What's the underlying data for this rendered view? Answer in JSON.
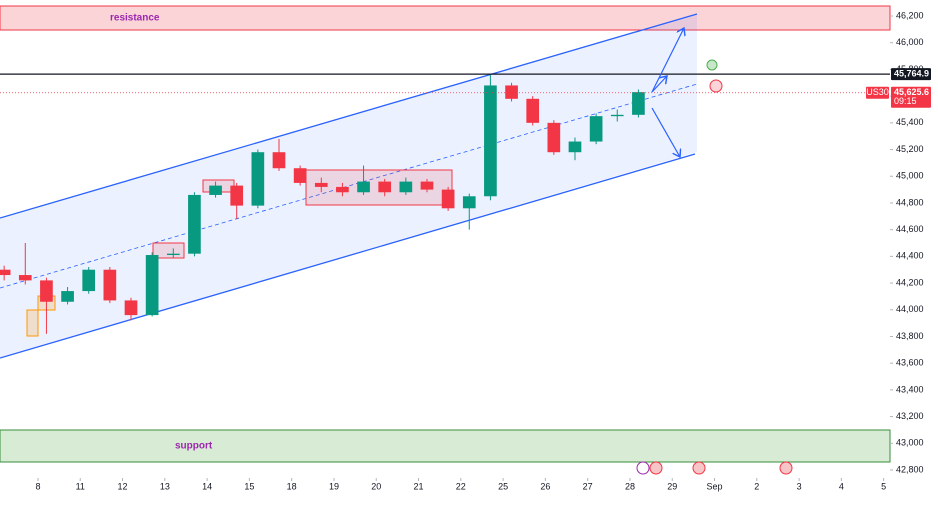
{
  "chart_data": {
    "type": "candlestick",
    "x": [
      -0.8,
      -0.3,
      0.2,
      0.7,
      1.2,
      1.7,
      2.2,
      2.7,
      3.2,
      3.7,
      4.2,
      4.7,
      5.2,
      5.7,
      6.2,
      6.7,
      7.2,
      7.7,
      8.2,
      8.7,
      9.2,
      9.7,
      10.2,
      10.7,
      11.2,
      11.7,
      12.2,
      12.7,
      13.2,
      13.7,
      14.2
    ],
    "open": [
      44300,
      44260,
      44220,
      44060,
      44140,
      44300,
      44070,
      43960,
      44410,
      44420,
      44860,
      44930,
      44780,
      45180,
      45060,
      44950,
      44920,
      44880,
      44960,
      44880,
      44960,
      44900,
      44760,
      44850,
      45680,
      45580,
      45400,
      45180,
      45260,
      45450,
      45460
    ],
    "high": [
      44330,
      44500,
      44240,
      44170,
      44320,
      44320,
      44090,
      44430,
      44460,
      44880,
      44960,
      44950,
      45200,
      45280,
      45080,
      44990,
      44950,
      45080,
      44980,
      44990,
      44980,
      44920,
      44870,
      45760,
      45700,
      45600,
      45420,
      45290,
      45470,
      45500,
      45650
    ],
    "low": [
      44220,
      44190,
      43820,
      44040,
      44120,
      44050,
      43920,
      43950,
      44390,
      44400,
      44840,
      44680,
      44760,
      45040,
      44930,
      44880,
      44850,
      44860,
      44850,
      44860,
      44880,
      44740,
      44600,
      44820,
      45560,
      45380,
      45160,
      45120,
      45240,
      45410,
      45440
    ],
    "close": [
      44260,
      44220,
      44060,
      44140,
      44300,
      44070,
      43960,
      44410,
      44420,
      44860,
      44930,
      44780,
      45180,
      45060,
      44950,
      44920,
      44880,
      44960,
      44880,
      44960,
      44900,
      44760,
      44850,
      45680,
      45580,
      45400,
      45180,
      45260,
      45450,
      45460,
      45630
    ],
    "up_color": "#089981",
    "down_color": "#f23645",
    "xlim": [
      -0.898,
      20.15
    ],
    "xticks": [
      {
        "value": 0,
        "label": "8"
      },
      {
        "value": 1,
        "label": "11"
      },
      {
        "value": 2,
        "label": "12"
      },
      {
        "value": 3,
        "label": "13"
      },
      {
        "value": 4,
        "label": "14"
      },
      {
        "value": 5,
        "label": "15"
      },
      {
        "value": 6,
        "label": "18"
      },
      {
        "value": 7,
        "label": "19"
      },
      {
        "value": 8,
        "label": "20"
      },
      {
        "value": 9,
        "label": "21"
      },
      {
        "value": 10,
        "label": "22"
      },
      {
        "value": 11,
        "label": "25"
      },
      {
        "value": 12,
        "label": "26"
      },
      {
        "value": 13,
        "label": "27"
      },
      {
        "value": 14,
        "label": "28"
      },
      {
        "value": 15,
        "label": "29"
      },
      {
        "value": 16,
        "label": "Sep"
      },
      {
        "value": 17,
        "label": "2"
      },
      {
        "value": 18,
        "label": "3"
      },
      {
        "value": 19,
        "label": "4"
      },
      {
        "value": 20,
        "label": "5"
      }
    ],
    "ylim": [
      42740,
      46320
    ],
    "yticks": [
      {
        "value": 42800,
        "label": "42,800"
      },
      {
        "value": 43000,
        "label": "43,000"
      },
      {
        "value": 43200,
        "label": "43,200"
      },
      {
        "value": 43400,
        "label": "43,400"
      },
      {
        "value": 43600,
        "label": "43,600"
      },
      {
        "value": 43800,
        "label": "43,800"
      },
      {
        "value": 44000,
        "label": "44,000"
      },
      {
        "value": 44200,
        "label": "44,200"
      },
      {
        "value": 44400,
        "label": "44,400"
      },
      {
        "value": 44600,
        "label": "44,600"
      },
      {
        "value": 44800,
        "label": "44,800"
      },
      {
        "value": 45000,
        "label": "45,000"
      },
      {
        "value": 45200,
        "label": "45,200"
      },
      {
        "value": 45400,
        "label": "45,400"
      },
      {
        "value": 45600,
        "label": "45,600"
      },
      {
        "value": 45800,
        "label": "45,800"
      },
      {
        "value": 46000,
        "label": "46,000"
      },
      {
        "value": 46200,
        "label": "46,200"
      }
    ],
    "grid": false,
    "annotations": {
      "resistance": "resistance",
      "support": "support"
    },
    "price_lines": [
      {
        "value": 45764.9,
        "label": "45,764.9",
        "color": "#131722",
        "style": "solid"
      },
      {
        "value": 45625.6,
        "label": "45,625.6",
        "symbol": "US30",
        "time": "09:15",
        "color": "#f23645",
        "style": "dotted"
      }
    ]
  }
}
